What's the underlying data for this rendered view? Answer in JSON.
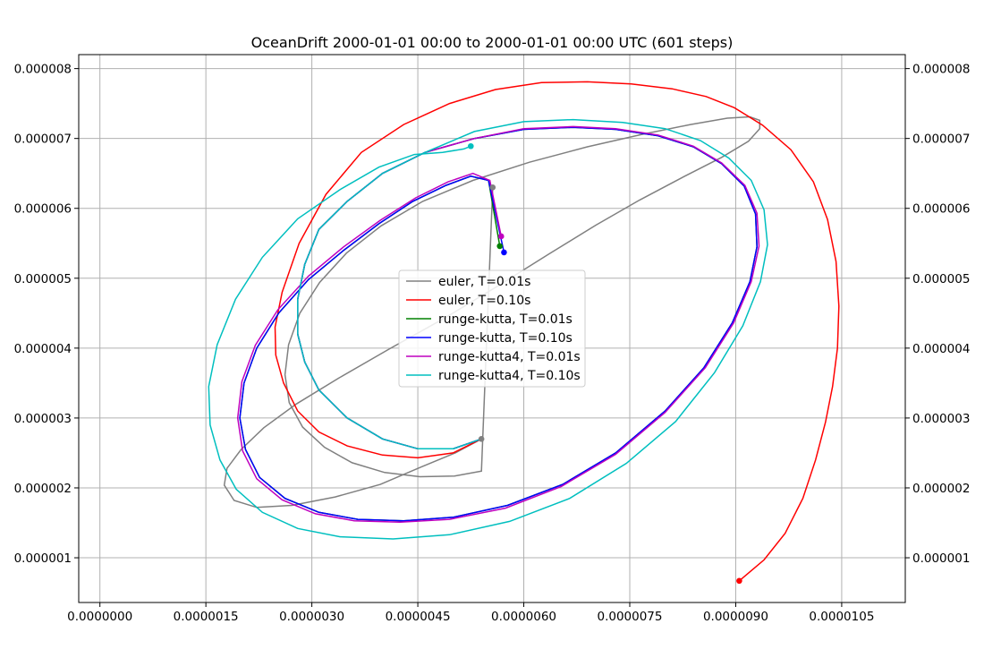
{
  "chart_data": {
    "type": "line",
    "title": "OceanDrift  2000-01-01 00:00 to 2000-01-01 00:00 UTC (601 steps)",
    "xlabel": "",
    "ylabel": "",
    "xlim": [
      -3e-07,
      1.14e-05
    ],
    "ylim": [
      3.6e-07,
      8.2e-06
    ],
    "x_ticks": [
      0,
      1.5e-06,
      3e-06,
      4.5e-06,
      6e-06,
      7.5e-06,
      9e-06,
      1.05e-05
    ],
    "x_tick_labels": [
      "0.0000000",
      "0.0000015",
      "0.0000030",
      "0.0000045",
      "0.0000060",
      "0.0000075",
      "0.0000090",
      "0.0000105"
    ],
    "y_ticks": [
      1e-06,
      2e-06,
      3e-06,
      4e-06,
      5e-06,
      6e-06,
      7e-06,
      8e-06
    ],
    "y_tick_labels": [
      "0.000001",
      "0.000002",
      "0.000003",
      "0.000004",
      "0.000005",
      "0.000006",
      "0.000007",
      "0.000008"
    ],
    "grid": true,
    "legend_position": "center",
    "start_point": {
      "x": 5.4e-06,
      "y": 2.7e-06
    },
    "series": [
      {
        "name": "euler, T=0.01s",
        "color": "#808080",
        "x": [
          5.4e-06,
          5.03e-06,
          4.55e-06,
          3.97e-06,
          3.33e-06,
          2.72e-06,
          2.22e-06,
          1.9e-06,
          1.76e-06,
          1.8e-06,
          2e-06,
          2.32e-06,
          2.78e-06,
          3.38e-06,
          4.1e-06,
          4.88e-06,
          5.65e-06,
          6.36e-06,
          7.02e-06,
          7.64e-06,
          8.26e-06,
          8.8e-06,
          9.18e-06,
          9.34e-06,
          9.34e-06,
          9.2e-06,
          8.88e-06,
          8.36e-06,
          7.68e-06,
          6.9e-06,
          6.08e-06,
          5.28e-06,
          4.57e-06,
          3.98e-06,
          3.49e-06,
          3.11e-06,
          2.83e-06,
          2.67e-06,
          2.62e-06,
          2.68e-06,
          2.87e-06,
          3.18e-06,
          3.57e-06,
          4.03e-06,
          4.53e-06,
          5.02e-06,
          5.4e-06,
          5.56e-06
        ],
        "y": [
          2.7e-06,
          2.5e-06,
          2.3e-06,
          2.05e-06,
          1.87e-06,
          1.75e-06,
          1.72e-06,
          1.82e-06,
          2.04e-06,
          2.28e-06,
          2.55e-06,
          2.86e-06,
          3.2e-06,
          3.57e-06,
          3.99e-06,
          4.43e-06,
          4.9e-06,
          5.35e-06,
          5.76e-06,
          6.12e-06,
          6.45e-06,
          6.73e-06,
          6.96e-06,
          7.14e-06,
          7.26e-06,
          7.31e-06,
          7.29e-06,
          7.2e-06,
          7.06e-06,
          6.88e-06,
          6.66e-06,
          6.4e-06,
          6.1e-06,
          5.75e-06,
          5.36e-06,
          4.94e-06,
          4.5e-06,
          4.05e-06,
          3.62e-06,
          3.22e-06,
          2.87e-06,
          2.58e-06,
          2.36e-06,
          2.22e-06,
          2.16e-06,
          2.17e-06,
          2.24e-06,
          6.3e-06
        ]
      },
      {
        "name": "euler, T=0.10s",
        "color": "#ff0000",
        "x": [
          5.4e-06,
          5e-06,
          4.5e-06,
          4e-06,
          3.5e-06,
          3.1e-06,
          2.8e-06,
          2.6e-06,
          2.49e-06,
          2.48e-06,
          2.58e-06,
          2.82e-06,
          3.2e-06,
          3.7e-06,
          4.3e-06,
          4.95e-06,
          5.6e-06,
          6.25e-06,
          6.9e-06,
          7.52e-06,
          8.1e-06,
          8.58e-06,
          8.98e-06,
          9.38e-06,
          9.78e-06,
          1.01e-05,
          1.03e-05,
          1.042e-05,
          1.046e-05,
          1.044e-05,
          1.037e-05,
          1.027e-05,
          1.013e-05,
          9.95e-06,
          9.7e-06,
          9.4e-06,
          9.05e-06
        ],
        "y": [
          2.7e-06,
          2.5e-06,
          2.43e-06,
          2.47e-06,
          2.6e-06,
          2.8e-06,
          3.1e-06,
          3.5e-06,
          3.9e-06,
          4.3e-06,
          4.8e-06,
          5.5e-06,
          6.2e-06,
          6.8e-06,
          7.2e-06,
          7.5e-06,
          7.7e-06,
          7.8e-06,
          7.81e-06,
          7.78e-06,
          7.71e-06,
          7.6e-06,
          7.44e-06,
          7.19e-06,
          6.84e-06,
          6.38e-06,
          5.84e-06,
          5.24e-06,
          4.6e-06,
          4e-06,
          3.45e-06,
          2.94e-06,
          2.4e-06,
          1.85e-06,
          1.35e-06,
          9.7e-07,
          6.7e-07
        ]
      },
      {
        "name": "runge-kutta, T=0.01s",
        "color": "#008000",
        "x": [
          5.4e-06,
          5e-06,
          4.5e-06,
          4e-06,
          3.5e-06,
          3.1e-06,
          2.9e-06,
          2.8e-06,
          2.8e-06,
          2.9e-06,
          3.1e-06,
          3.5e-06,
          4e-06,
          4.6e-06,
          5.3e-06,
          6e-06,
          6.7e-06,
          7.3e-06,
          7.9e-06,
          8.4e-06,
          8.8e-06,
          9.12e-06,
          9.28e-06,
          9.3e-06,
          9.2e-06,
          8.95e-06,
          8.55e-06,
          8e-06,
          7.3e-06,
          6.55e-06,
          5.77e-06,
          5e-06,
          4.3e-06,
          3.65e-06,
          3.1e-06,
          2.62e-06,
          2.26e-06,
          2.06e-06,
          1.98e-06,
          2.04e-06,
          2.22e-06,
          2.53e-06,
          2.95e-06,
          3.45e-06,
          3.95e-06,
          4.43e-06,
          4.9e-06,
          5.25e-06,
          5.5e-06,
          5.66e-06
        ],
        "y": [
          2.7e-06,
          2.56e-06,
          2.56e-06,
          2.7e-06,
          3e-06,
          3.4e-06,
          3.8e-06,
          4.2e-06,
          4.7e-06,
          5.2e-06,
          5.7e-06,
          6.1e-06,
          6.5e-06,
          6.8e-06,
          7e-06,
          7.13e-06,
          7.16e-06,
          7.13e-06,
          7.04e-06,
          6.88e-06,
          6.64e-06,
          6.32e-06,
          5.92e-06,
          5.45e-06,
          4.95e-06,
          4.36e-06,
          3.72e-06,
          3.1e-06,
          2.5e-06,
          2.05e-06,
          1.75e-06,
          1.58e-06,
          1.53e-06,
          1.55e-06,
          1.65e-06,
          1.85e-06,
          2.15e-06,
          2.55e-06,
          3e-06,
          3.5e-06,
          4e-06,
          4.5e-06,
          4.98e-06,
          5.4e-06,
          5.78e-06,
          6.1e-06,
          6.33e-06,
          6.46e-06,
          6.4e-06,
          5.46e-06
        ]
      },
      {
        "name": "runge-kutta, T=0.10s",
        "color": "#0000ff",
        "x": [
          5.4e-06,
          5e-06,
          4.5e-06,
          4e-06,
          3.5e-06,
          3.1e-06,
          2.9e-06,
          2.8e-06,
          2.8e-06,
          2.9e-06,
          3.1e-06,
          3.5e-06,
          4e-06,
          4.6e-06,
          5.3e-06,
          6e-06,
          6.7e-06,
          7.3e-06,
          7.9e-06,
          8.4e-06,
          8.8e-06,
          9.12e-06,
          9.28e-06,
          9.3e-06,
          9.2e-06,
          8.95e-06,
          8.55e-06,
          8e-06,
          7.3e-06,
          6.55e-06,
          5.77e-06,
          5e-06,
          4.3e-06,
          3.65e-06,
          3.1e-06,
          2.62e-06,
          2.26e-06,
          2.06e-06,
          1.98e-06,
          2.04e-06,
          2.22e-06,
          2.53e-06,
          2.95e-06,
          3.45e-06,
          3.95e-06,
          4.43e-06,
          4.9e-06,
          5.25e-06,
          5.5e-06,
          5.72e-06
        ],
        "y": [
          2.7e-06,
          2.56e-06,
          2.56e-06,
          2.7e-06,
          3e-06,
          3.4e-06,
          3.8e-06,
          4.2e-06,
          4.7e-06,
          5.2e-06,
          5.7e-06,
          6.1e-06,
          6.5e-06,
          6.8e-06,
          7e-06,
          7.13e-06,
          7.16e-06,
          7.13e-06,
          7.04e-06,
          6.88e-06,
          6.64e-06,
          6.32e-06,
          5.92e-06,
          5.45e-06,
          4.95e-06,
          4.36e-06,
          3.72e-06,
          3.1e-06,
          2.5e-06,
          2.05e-06,
          1.75e-06,
          1.58e-06,
          1.53e-06,
          1.55e-06,
          1.65e-06,
          1.85e-06,
          2.15e-06,
          2.55e-06,
          3e-06,
          3.5e-06,
          4e-06,
          4.5e-06,
          4.98e-06,
          5.4e-06,
          5.78e-06,
          6.1e-06,
          6.33e-06,
          6.46e-06,
          6.4e-06,
          5.37e-06
        ]
      },
      {
        "name": "runge-kutta4, T=0.01s",
        "color": "#bf00bf",
        "x": [
          5.4e-06,
          5e-06,
          4.5e-06,
          4e-06,
          3.5e-06,
          3.1e-06,
          2.9e-06,
          2.8e-06,
          2.8e-06,
          2.9e-06,
          3.1e-06,
          3.5e-06,
          4e-06,
          4.6e-06,
          5.3e-06,
          6e-06,
          6.7e-06,
          7.3e-06,
          7.9e-06,
          8.4e-06,
          8.8e-06,
          9.13e-06,
          9.3e-06,
          9.33e-06,
          9.22e-06,
          8.97e-06,
          8.57e-06,
          8e-06,
          7.3e-06,
          6.53e-06,
          5.74e-06,
          4.95e-06,
          4.25e-06,
          3.6e-06,
          3.05e-06,
          2.58e-06,
          2.22e-06,
          2.02e-06,
          1.95e-06,
          2.01e-06,
          2.2e-06,
          2.52e-06,
          2.95e-06,
          3.45e-06,
          3.97e-06,
          4.47e-06,
          4.93e-06,
          5.28e-06,
          5.52e-06,
          5.68e-06
        ],
        "y": [
          2.7e-06,
          2.56e-06,
          2.56e-06,
          2.7e-06,
          3e-06,
          3.4e-06,
          3.8e-06,
          4.2e-06,
          4.7e-06,
          5.2e-06,
          5.7e-06,
          6.1e-06,
          6.5e-06,
          6.8e-06,
          7e-06,
          7.14e-06,
          7.17e-06,
          7.14e-06,
          7.05e-06,
          6.89e-06,
          6.65e-06,
          6.33e-06,
          5.93e-06,
          5.46e-06,
          4.95e-06,
          4.36e-06,
          3.72e-06,
          3.08e-06,
          2.48e-06,
          2.02e-06,
          1.71e-06,
          1.55e-06,
          1.51e-06,
          1.53e-06,
          1.63e-06,
          1.83e-06,
          2.13e-06,
          2.53e-06,
          3e-06,
          3.52e-06,
          4.04e-06,
          4.55e-06,
          5.03e-06,
          5.45e-06,
          5.83e-06,
          6.15e-06,
          6.38e-06,
          6.5e-06,
          6.4e-06,
          5.6e-06
        ]
      },
      {
        "name": "runge-kutta4, T=0.10s",
        "color": "#00bfbf",
        "x": [
          5.4e-06,
          5e-06,
          4.5e-06,
          4e-06,
          3.5e-06,
          3.1e-06,
          2.9e-06,
          2.8e-06,
          2.8e-06,
          2.9e-06,
          3.1e-06,
          3.5e-06,
          4e-06,
          4.6e-06,
          5.3e-06,
          6e-06,
          6.7e-06,
          7.4e-06,
          8e-06,
          8.5e-06,
          8.9e-06,
          9.22e-06,
          9.4e-06,
          9.45e-06,
          9.35e-06,
          9.1e-06,
          8.7e-06,
          8.15e-06,
          7.45e-06,
          6.65e-06,
          5.8e-06,
          4.95e-06,
          4.15e-06,
          3.4e-06,
          2.8e-06,
          2.3e-06,
          1.93e-06,
          1.7e-06,
          1.56e-06,
          1.54e-06,
          1.66e-06,
          1.92e-06,
          2.3e-06,
          2.8e-06,
          3.4e-06,
          3.95e-06,
          4.45e-06,
          4.85e-06,
          5.15e-06,
          5.25e-06
        ],
        "y": [
          2.7e-06,
          2.56e-06,
          2.56e-06,
          2.7e-06,
          3e-06,
          3.4e-06,
          3.8e-06,
          4.2e-06,
          4.7e-06,
          5.2e-06,
          5.7e-06,
          6.1e-06,
          6.5e-06,
          6.8e-06,
          7.1e-06,
          7.24e-06,
          7.27e-06,
          7.23e-06,
          7.14e-06,
          6.97e-06,
          6.72e-06,
          6.4e-06,
          5.98e-06,
          5.48e-06,
          4.95e-06,
          4.32e-06,
          3.65e-06,
          2.95e-06,
          2.35e-06,
          1.85e-06,
          1.52e-06,
          1.33e-06,
          1.27e-06,
          1.3e-06,
          1.42e-06,
          1.65e-06,
          1.98e-06,
          2.4e-06,
          2.9e-06,
          3.45e-06,
          4.05e-06,
          4.7e-06,
          5.3e-06,
          5.85e-06,
          6.27e-06,
          6.59e-06,
          6.77e-06,
          6.8e-06,
          6.85e-06,
          6.89e-06
        ]
      }
    ]
  }
}
